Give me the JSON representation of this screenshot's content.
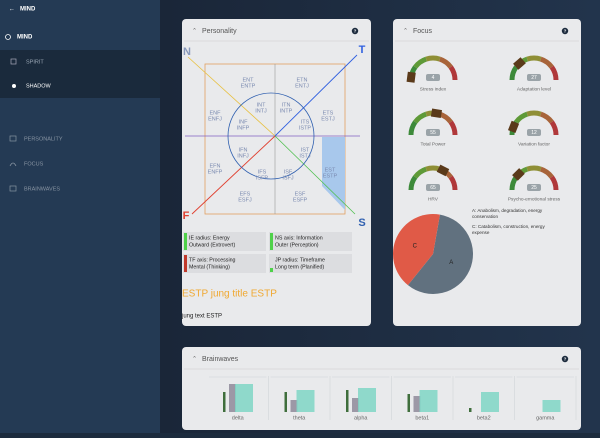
{
  "nav": {
    "back": "MIND",
    "items": [
      "MIND",
      "SPIRIT",
      "SHADOW",
      "PERSONALITY",
      "FOCUS",
      "BRAINWAVES"
    ]
  },
  "personality": {
    "title": "Personality",
    "help": "?",
    "corners": [
      "N",
      "T",
      "F",
      "S"
    ],
    "types": [
      {
        "code": "ENT",
        "type": "ENTP"
      },
      {
        "code": "ETN",
        "type": "ENTJ"
      },
      {
        "code": "ENF",
        "type": "ENFJ"
      },
      {
        "code": "INT",
        "type": "INTJ"
      },
      {
        "code": "ITN",
        "type": "INTP"
      },
      {
        "code": "ETS",
        "type": "ESTJ"
      },
      {
        "code": "INF",
        "type": "INFP"
      },
      {
        "code": "ITS",
        "type": "ISTP"
      },
      {
        "code": "IFN",
        "type": "INFJ"
      },
      {
        "code": "IST",
        "type": "ISTJ"
      },
      {
        "code": "EFN",
        "type": "ENFP"
      },
      {
        "code": "EST",
        "type": "ESTP"
      },
      {
        "code": "IFS",
        "type": "ISFP"
      },
      {
        "code": "ISF",
        "type": "ISFJ"
      },
      {
        "code": "EFS",
        "type": "ESFJ"
      },
      {
        "code": "ESF",
        "type": "ESFP"
      }
    ],
    "legend": [
      {
        "title": "IE radius: Energy",
        "value": "Outward (Extrovert)",
        "color": "#4fd14a"
      },
      {
        "title": "NS axis: Information",
        "value": "Outer (Perception)",
        "color": "#4fd14a"
      },
      {
        "title": "TF axis: Processing",
        "value": "Mental (Thinking)",
        "color": "#c0392b"
      },
      {
        "title": "JP radius: Timeframe",
        "value": "Long term (Planified)",
        "color": "#4fd14a"
      }
    ],
    "jung_title": "ESTP jung title ESTP",
    "jung_text": "jung text ESTP"
  },
  "focus": {
    "title": "Focus",
    "help": "?",
    "gauges": [
      {
        "label": "Stress index",
        "value": 4
      },
      {
        "label": "Adaptation level",
        "value": 27
      },
      {
        "label": "Total Power",
        "value": 55
      },
      {
        "label": "Variation factor",
        "value": 12
      },
      {
        "label": "HRV",
        "value": 65
      },
      {
        "label": "Psycho-emotional stress",
        "value": 25
      }
    ],
    "pie": {
      "slices": [
        {
          "label": "A",
          "value": 58,
          "color": "#61717f"
        },
        {
          "label": "C",
          "value": 42,
          "color": "#e05a47"
        }
      ],
      "legend": [
        "A: Anabolism, degradation, energy conservation",
        "C: Catabolism, construction, energy expense"
      ]
    }
  },
  "brainwaves": {
    "title": "Brainwaves",
    "help": "?",
    "categories": [
      "delta",
      "theta",
      "alpha",
      "beta1",
      "beta2",
      "gamma"
    ],
    "series": [
      {
        "color": "#3f6e3c",
        "values": [
          20,
          20,
          22,
          18,
          4,
          0
        ]
      },
      {
        "color": "#9c98a6",
        "values": [
          28,
          12,
          14,
          16,
          0,
          0
        ]
      },
      {
        "color": "#7fd6c6",
        "values": [
          28,
          22,
          24,
          22,
          20,
          12
        ]
      }
    ]
  }
}
